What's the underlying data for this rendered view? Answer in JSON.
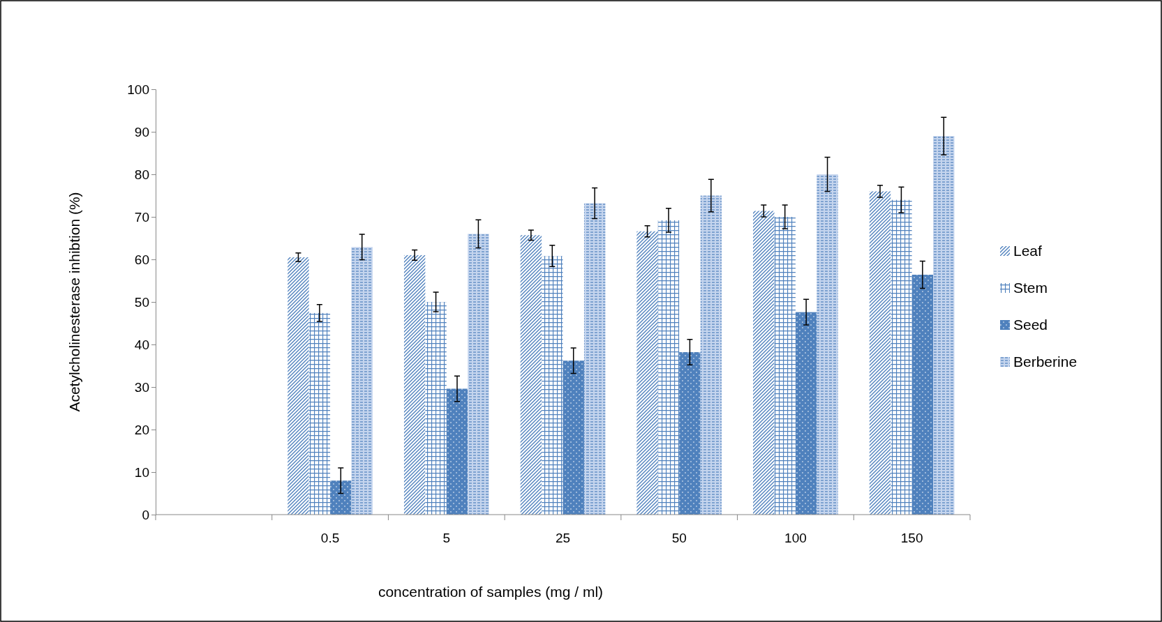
{
  "chart_data": {
    "type": "bar",
    "xlabel": "concentration of samples (mg / ml)",
    "ylabel": "Acetylcholinesterase inhibtion (%)",
    "categories": [
      null,
      "0.5",
      "5",
      "25",
      "50",
      "100",
      "150"
    ],
    "ylim": [
      0,
      100
    ],
    "yticks": [
      0,
      10,
      20,
      30,
      40,
      50,
      60,
      70,
      80,
      90,
      100
    ],
    "legend": "right",
    "series": [
      {
        "name": "Leaf",
        "color": "#4f81bd",
        "values": [
          null,
          60.5,
          61,
          65.7,
          66.6,
          71.4,
          76
        ],
        "errors": [
          null,
          1,
          1.2,
          1.2,
          1.3,
          1.4,
          1.4
        ]
      },
      {
        "name": "Stem",
        "color": "#4f81bd",
        "values": [
          null,
          47.4,
          50,
          60.8,
          69.2,
          70,
          74
        ],
        "errors": [
          null,
          2,
          2.3,
          2.5,
          2.8,
          2.8,
          3
        ]
      },
      {
        "name": "Seed",
        "color": "#4f81bd",
        "values": [
          null,
          8,
          29.6,
          36.2,
          38.2,
          47.6,
          56.4
        ],
        "errors": [
          null,
          3,
          3,
          3,
          3,
          3,
          3.2
        ]
      },
      {
        "name": "Berberine",
        "color": "#4f81bd",
        "values": [
          null,
          62.9,
          66,
          73.2,
          75,
          80,
          89
        ],
        "errors": [
          null,
          3,
          3.3,
          3.6,
          3.8,
          4,
          4.4
        ]
      }
    ]
  }
}
